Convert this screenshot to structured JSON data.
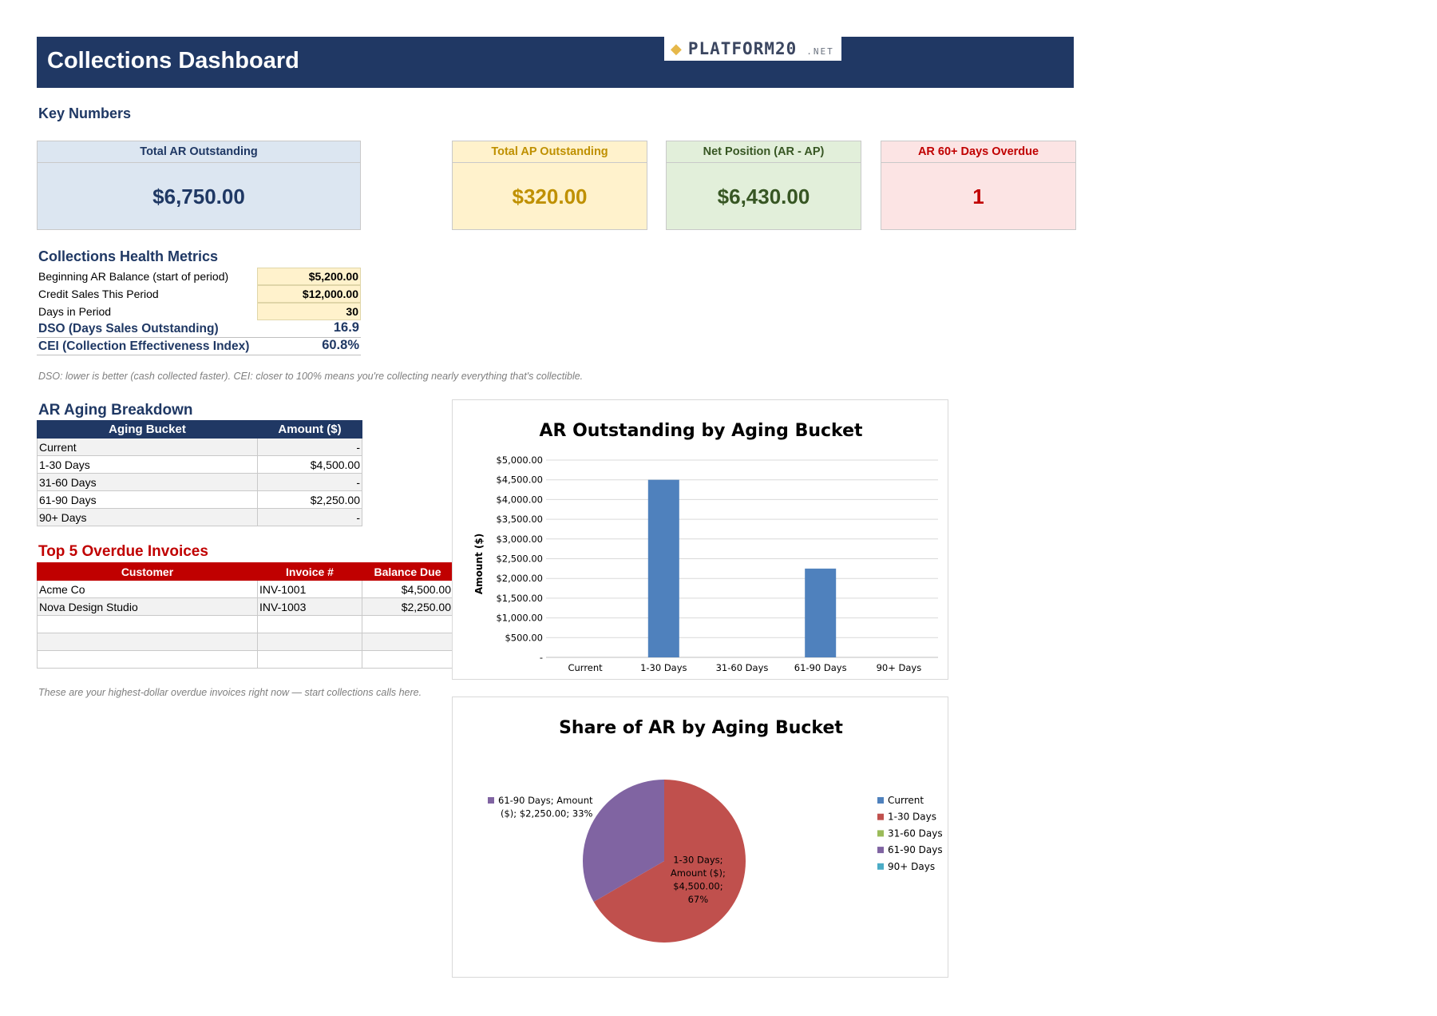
{
  "header": {
    "title": "Collections Dashboard",
    "logo_word": "PLATFORM20",
    "logo_suffix": ".NET"
  },
  "key_numbers": {
    "title": "Key Numbers",
    "cards": [
      {
        "label": "Total AR Outstanding",
        "value": "$6,750.00"
      },
      {
        "label": "Total AP Outstanding",
        "value": "$320.00"
      },
      {
        "label": "Net Position (AR - AP)",
        "value": "$6,430.00"
      },
      {
        "label": "AR 60+ Days Overdue",
        "value": "1"
      }
    ]
  },
  "health": {
    "title": "Collections Health Metrics",
    "inputs": [
      {
        "label": "Beginning AR Balance (start of period)",
        "value": "$5,200.00"
      },
      {
        "label": "Credit Sales This Period",
        "value": "$12,000.00"
      },
      {
        "label": "Days in Period",
        "value": "30"
      }
    ],
    "outputs": [
      {
        "label": "DSO (Days Sales Outstanding)",
        "value": "16.9"
      },
      {
        "label": "CEI (Collection Effectiveness Index)",
        "value": "60.8%"
      }
    ],
    "note": "DSO: lower is better (cash collected faster). CEI: closer to 100% means you're collecting nearly everything that's collectible."
  },
  "aging": {
    "title": "AR Aging Breakdown",
    "headers": [
      "Aging Bucket",
      "Amount ($)"
    ],
    "rows": [
      {
        "bucket": "Current",
        "amount": "-"
      },
      {
        "bucket": "1-30 Days",
        "amount": "$4,500.00"
      },
      {
        "bucket": "31-60 Days",
        "amount": "-"
      },
      {
        "bucket": "61-90 Days",
        "amount": "$2,250.00"
      },
      {
        "bucket": "90+ Days",
        "amount": "-"
      }
    ]
  },
  "overdue": {
    "title": "Top 5 Overdue Invoices",
    "headers": [
      "Customer",
      "Invoice #",
      "Balance Due"
    ],
    "rows": [
      {
        "customer": "Acme Co",
        "invoice": "INV-1001",
        "balance": "$4,500.00"
      },
      {
        "customer": "Nova Design Studio",
        "invoice": "INV-1003",
        "balance": "$2,250.00"
      },
      {
        "customer": "",
        "invoice": "",
        "balance": ""
      },
      {
        "customer": "",
        "invoice": "",
        "balance": ""
      },
      {
        "customer": "",
        "invoice": "",
        "balance": ""
      }
    ],
    "note": "These are your highest-dollar overdue invoices right now — start collections calls here."
  },
  "colors": {
    "navy": "#203864",
    "bar": "#4f81bd",
    "current": "#4f81bd",
    "d1_30": "#c0504d",
    "d31_60": "#9bbb59",
    "d61_90": "#8064a2",
    "d90p": "#4bacc6"
  },
  "chart_data": [
    {
      "type": "bar",
      "title": "AR Outstanding by Aging Bucket",
      "ylabel": "Amount ($)",
      "xlabel": "",
      "categories": [
        "Current",
        "1-30 Days",
        "31-60 Days",
        "61-90 Days",
        "90+ Days"
      ],
      "values": [
        0,
        4500,
        0,
        2250,
        0
      ],
      "ylim": [
        0,
        5000
      ],
      "yticks": [
        "-",
        "$500.00",
        "$1,000.00",
        "$1,500.00",
        "$2,000.00",
        "$2,500.00",
        "$3,000.00",
        "$3,500.00",
        "$4,000.00",
        "$4,500.00",
        "$5,000.00"
      ],
      "grid": true
    },
    {
      "type": "pie",
      "title": "Share of AR by Aging Bucket",
      "categories": [
        "Current",
        "1-30 Days",
        "31-60 Days",
        "61-90 Days",
        "90+ Days"
      ],
      "values": [
        0,
        4500,
        0,
        2250,
        0
      ],
      "labels": [
        {
          "category": "1-30 Days",
          "lines": [
            "1-30 Days;",
            "Amount ($);",
            "$4,500.00;",
            "67%"
          ]
        },
        {
          "category": "61-90 Days",
          "lines": [
            "61-90 Days; Amount",
            "($); $2,250.00; 33%"
          ]
        }
      ],
      "legend": "right"
    }
  ]
}
